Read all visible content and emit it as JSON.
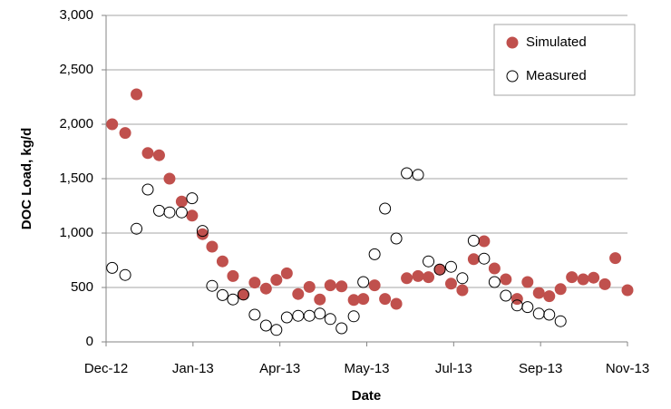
{
  "chart_data": {
    "type": "scatter",
    "ylabel": "DOC Load, kg/d",
    "xlabel": "Date",
    "ylim": [
      0,
      3000
    ],
    "yticks": [
      0,
      500,
      {
        "value": 1000,
        "label": "1,000"
      },
      {
        "value": 1500,
        "label": "1,500"
      },
      {
        "value": 2000,
        "label": "2,000"
      },
      {
        "value": 2500,
        "label": "2,500"
      },
      {
        "value": 3000,
        "label": "3,000"
      }
    ],
    "xlim": [
      0,
      6
    ],
    "xticks": [
      {
        "value": 0,
        "label": "Dec-12"
      },
      {
        "value": 1,
        "label": "Jan-13"
      },
      {
        "value": 2,
        "label": "Apr-13"
      },
      {
        "value": 3,
        "label": "May-13"
      },
      {
        "value": 4,
        "label": "Jul-13"
      },
      {
        "value": 5,
        "label": "Sep-13"
      },
      {
        "value": 6,
        "label": "Nov-13"
      }
    ],
    "grid": true,
    "legend": "upper right",
    "series": [
      {
        "name": "Simulated",
        "color": "#c0504d",
        "edgecolor": "#c0504d",
        "x": [
          0.07,
          0.22,
          0.35,
          0.48,
          0.61,
          0.73,
          0.87,
          0.99,
          1.11,
          1.22,
          1.34,
          1.46,
          1.58,
          1.71,
          1.84,
          1.96,
          2.08,
          2.21,
          2.34,
          2.46,
          2.58,
          2.71,
          2.85,
          2.96,
          3.09,
          3.21,
          3.34,
          3.46,
          3.59,
          3.71,
          3.84,
          3.97,
          4.1,
          4.23,
          4.35,
          4.47,
          4.6,
          4.73,
          4.85,
          4.98,
          5.1,
          5.23,
          5.36,
          5.49,
          5.61,
          5.74,
          5.86,
          6.0
        ],
        "values": [
          2000,
          1920,
          2275,
          1735,
          1715,
          1500,
          1290,
          1160,
          990,
          875,
          740,
          605,
          435,
          545,
          490,
          570,
          630,
          440,
          505,
          390,
          520,
          510,
          385,
          395,
          520,
          395,
          350,
          585,
          605,
          595,
          665,
          535,
          475,
          760,
          925,
          675,
          575,
          395,
          550,
          450,
          420,
          485,
          595,
          575,
          590,
          530,
          770,
          475
        ]
      },
      {
        "name": "Measured",
        "color": "#ffffff",
        "edgecolor": "#000000",
        "x": [
          0.07,
          0.22,
          0.35,
          0.48,
          0.61,
          0.73,
          0.87,
          0.99,
          1.11,
          1.22,
          1.34,
          1.46,
          1.58,
          1.71,
          1.84,
          1.96,
          2.08,
          2.21,
          2.34,
          2.46,
          2.58,
          2.71,
          2.85,
          2.96,
          3.09,
          3.21,
          3.34,
          3.46,
          3.59,
          3.71,
          3.84,
          3.97,
          4.1,
          4.23,
          4.35,
          4.47,
          4.6,
          4.73,
          4.85,
          4.98,
          5.1,
          5.23
        ],
        "values": [
          680,
          615,
          1040,
          1400,
          1205,
          1190,
          1190,
          1320,
          1020,
          515,
          430,
          390,
          435,
          250,
          150,
          110,
          225,
          240,
          240,
          260,
          210,
          125,
          235,
          550,
          805,
          1225,
          950,
          1550,
          1535,
          740,
          665,
          690,
          585,
          930,
          765,
          550,
          425,
          335,
          320,
          260,
          250,
          190
        ]
      }
    ]
  }
}
